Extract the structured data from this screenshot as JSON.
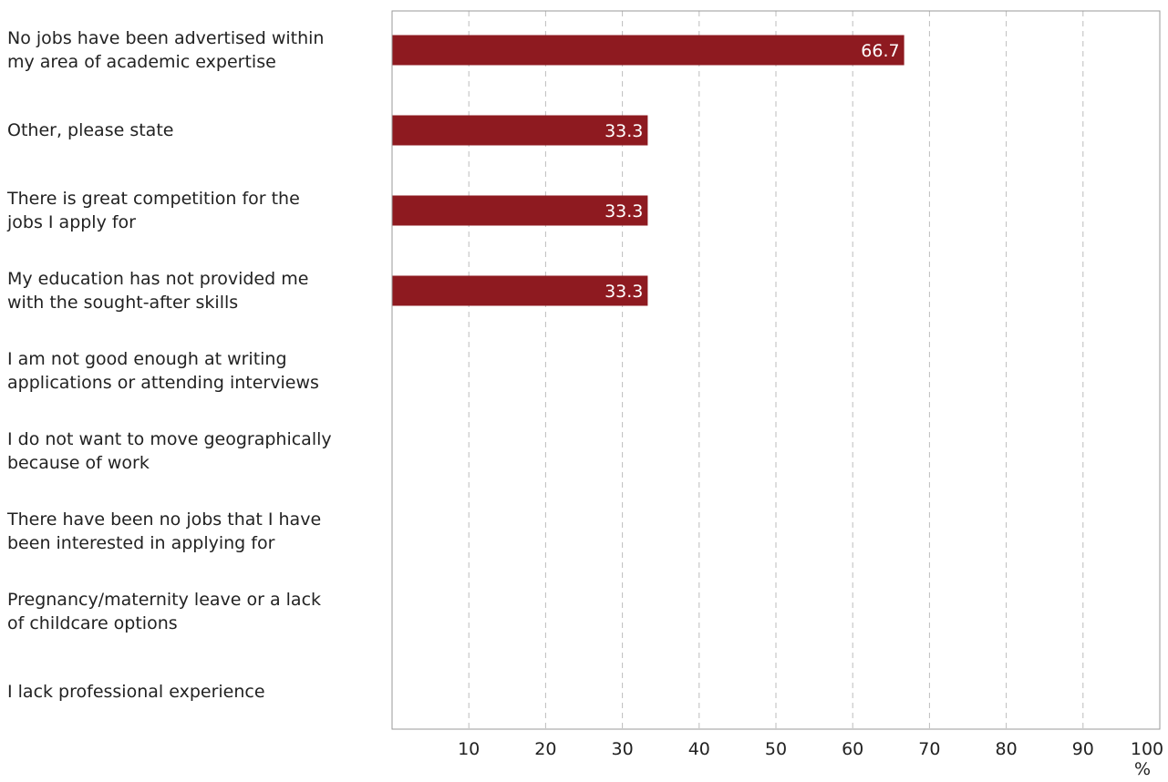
{
  "chart_data": {
    "type": "bar",
    "orientation": "horizontal",
    "categories": [
      "No jobs have been advertised within\nmy area of academic expertise",
      "Other, please state",
      "There is great competition for the\njobs I apply for",
      "My education has not provided me\nwith the sought-after skills",
      "I am not good enough at writing\napplications or attending interviews",
      "I do not want to move geographically\nbecause of work",
      "There have been no jobs that I have\nbeen interested in applying for",
      "Pregnancy/maternity leave or a lack\nof childcare options",
      "I lack professional experience"
    ],
    "values": [
      66.7,
      33.3,
      33.3,
      33.3,
      0,
      0,
      0,
      0,
      0
    ],
    "data_labels": [
      "66.7",
      "33.3",
      "33.3",
      "33.3",
      "",
      "",
      "",
      "",
      ""
    ],
    "xlim": [
      0,
      100
    ],
    "ticks": [
      10,
      20,
      30,
      40,
      50,
      60,
      70,
      80,
      90,
      100
    ],
    "tick_labels": [
      "10",
      "20",
      "30",
      "40",
      "50",
      "60",
      "70",
      "80",
      "90",
      "100"
    ],
    "unit": "%",
    "bar_color": "#8e1a20",
    "grid": "vertical-dashed"
  }
}
